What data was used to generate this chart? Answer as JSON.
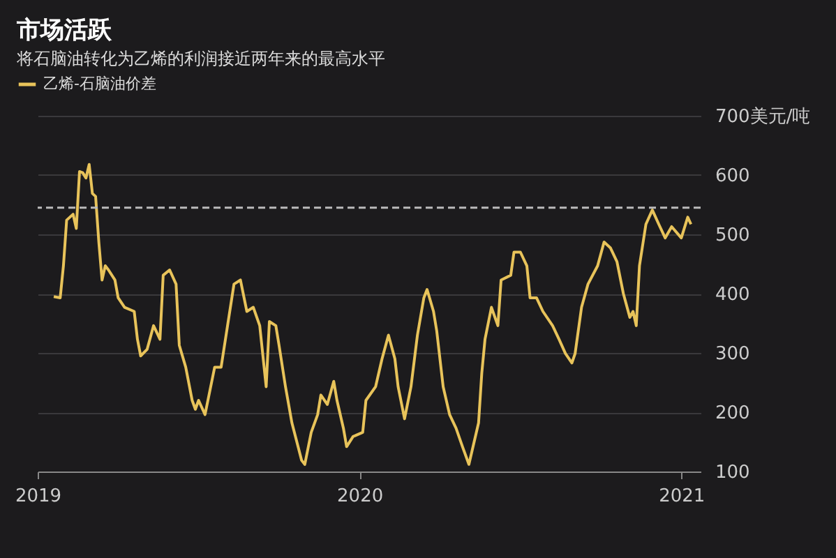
{
  "chart_data": {
    "type": "line",
    "title": "市场活跃",
    "subtitle": "将石脑油转化为乙烯的利润接近两年来的最高水平",
    "x": [
      2019.05,
      2019.07,
      2019.08,
      2019.09,
      2019.11,
      2019.12,
      2019.13,
      2019.14,
      2019.15,
      2019.16,
      2019.17,
      2019.18,
      2019.19,
      2019.2,
      2019.21,
      2019.22,
      2019.24,
      2019.25,
      2019.27,
      2019.3,
      2019.31,
      2019.32,
      2019.34,
      2019.36,
      2019.38,
      2019.39,
      2019.41,
      2019.43,
      2019.44,
      2019.46,
      2019.48,
      2019.49,
      2019.5,
      2019.52,
      2019.55,
      2019.57,
      2019.59,
      2019.61,
      2019.63,
      2019.65,
      2019.67,
      2019.69,
      2019.71,
      2019.72,
      2019.74,
      2019.75,
      2019.77,
      2019.79,
      2019.82,
      2019.83,
      2019.85,
      2019.87,
      2019.88,
      2019.9,
      2019.92,
      2019.93,
      2019.95,
      2019.96,
      2019.98,
      2020.01,
      2020.02,
      2020.05,
      2020.07,
      2020.09,
      2020.11,
      2020.12,
      2020.14,
      2020.16,
      2020.18,
      2020.2,
      2020.21,
      2020.23,
      2020.24,
      2020.26,
      2020.28,
      2020.3,
      2020.32,
      2020.34,
      2020.37,
      2020.38,
      2020.39,
      2020.41,
      2020.43,
      2020.44,
      2020.47,
      2020.48,
      2020.5,
      2020.52,
      2020.53,
      2020.55,
      2020.57,
      2020.6,
      2020.62,
      2020.64,
      2020.66,
      2020.67,
      2020.69,
      2020.71,
      2020.74,
      2020.76,
      2020.78,
      2020.8,
      2020.82,
      2020.84,
      2020.85,
      2020.86,
      2020.87,
      2020.89,
      2020.91,
      2020.93,
      2020.95,
      2020.97,
      2021.0,
      2021.02,
      2021.03
    ],
    "series": [
      {
        "name": "乙烯-石脑油价差",
        "color": "#e8c35a",
        "values": [
          395,
          393,
          447,
          524,
          534,
          510,
          606,
          604,
          595,
          618,
          569,
          564,
          487,
          423,
          447,
          440,
          423,
          393,
          377,
          370,
          323,
          295,
          306,
          346,
          323,
          431,
          440,
          416,
          313,
          276,
          220,
          205,
          220,
          196,
          276,
          276,
          346,
          416,
          423,
          370,
          377,
          346,
          243,
          353,
          346,
          313,
          243,
          182,
          119,
          112,
          166,
          196,
          229,
          213,
          252,
          220,
          173,
          142,
          159,
          166,
          220,
          243,
          290,
          330,
          290,
          243,
          189,
          243,
          330,
          393,
          407,
          370,
          337,
          243,
          196,
          173,
          142,
          112,
          182,
          266,
          323,
          377,
          346,
          423,
          431,
          470,
          470,
          447,
          393,
          393,
          370,
          346,
          323,
          299,
          283,
          299,
          377,
          416,
          447,
          487,
          477,
          454,
          400,
          360,
          370,
          346,
          447,
          517,
          541,
          517,
          494,
          513,
          494,
          529,
          517
        ]
      }
    ],
    "xlim": [
      2019.0,
      2021.06
    ],
    "xticks": [
      2019,
      2020,
      2021
    ],
    "ylim": [
      100,
      700
    ],
    "yticks": [
      100,
      200,
      300,
      400,
      500,
      {
        "value": 700,
        "label": "700美元/吨"
      },
      600
    ],
    "ref_lines": [
      {
        "axis": "y",
        "value": 545,
        "color": "#bbbbbb",
        "line_style": "dashed"
      }
    ],
    "grid": "y",
    "legend": "top left",
    "marker": "none",
    "line_style": "solid"
  }
}
